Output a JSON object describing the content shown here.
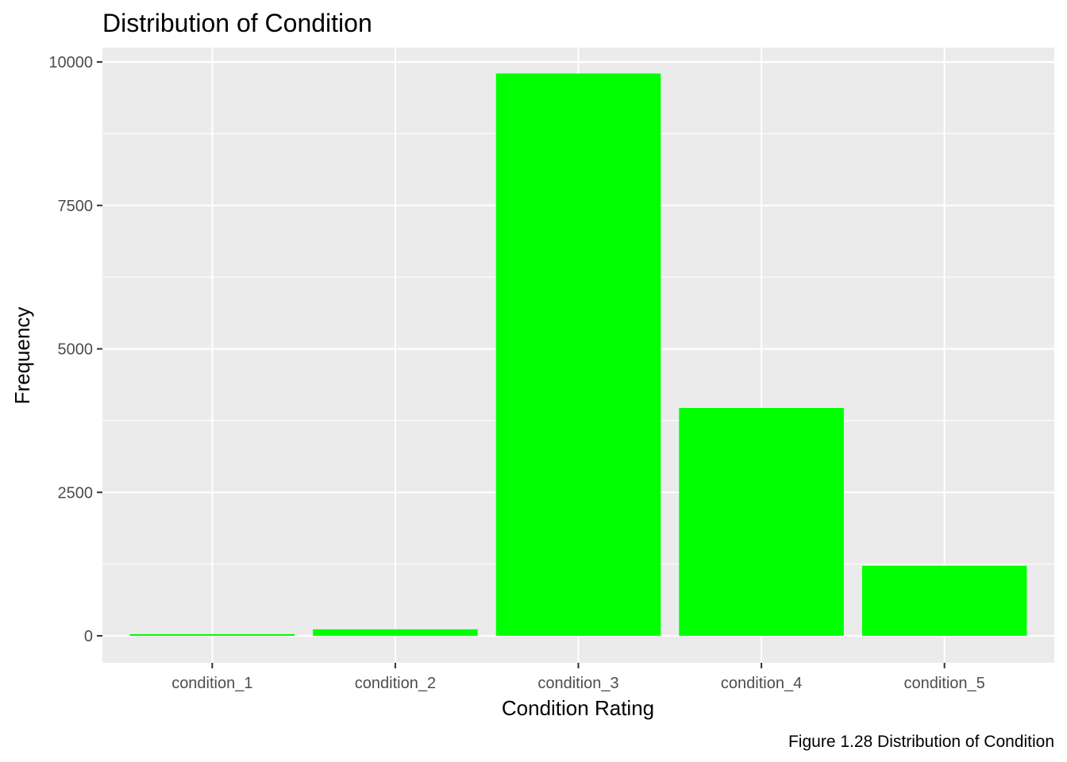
{
  "chart_data": {
    "type": "bar",
    "title": "Distribution of Condition",
    "xlabel": "Condition Rating",
    "ylabel": "Frequency",
    "caption": "Figure 1.28 Distribution of Condition",
    "categories": [
      "condition_1",
      "condition_2",
      "condition_3",
      "condition_4",
      "condition_5"
    ],
    "values": [
      29,
      113,
      9800,
      3970,
      1220
    ],
    "ylim": [
      -470,
      10250
    ],
    "yticks": [
      0,
      2500,
      5000,
      7500,
      10000
    ],
    "ytick_labels": [
      "0",
      "2500",
      "5000",
      "7500",
      "10000"
    ],
    "grid": true,
    "bar_color": "#00ff00",
    "panel_color": "#ebebeb",
    "gridline_color": "#ffffff"
  }
}
